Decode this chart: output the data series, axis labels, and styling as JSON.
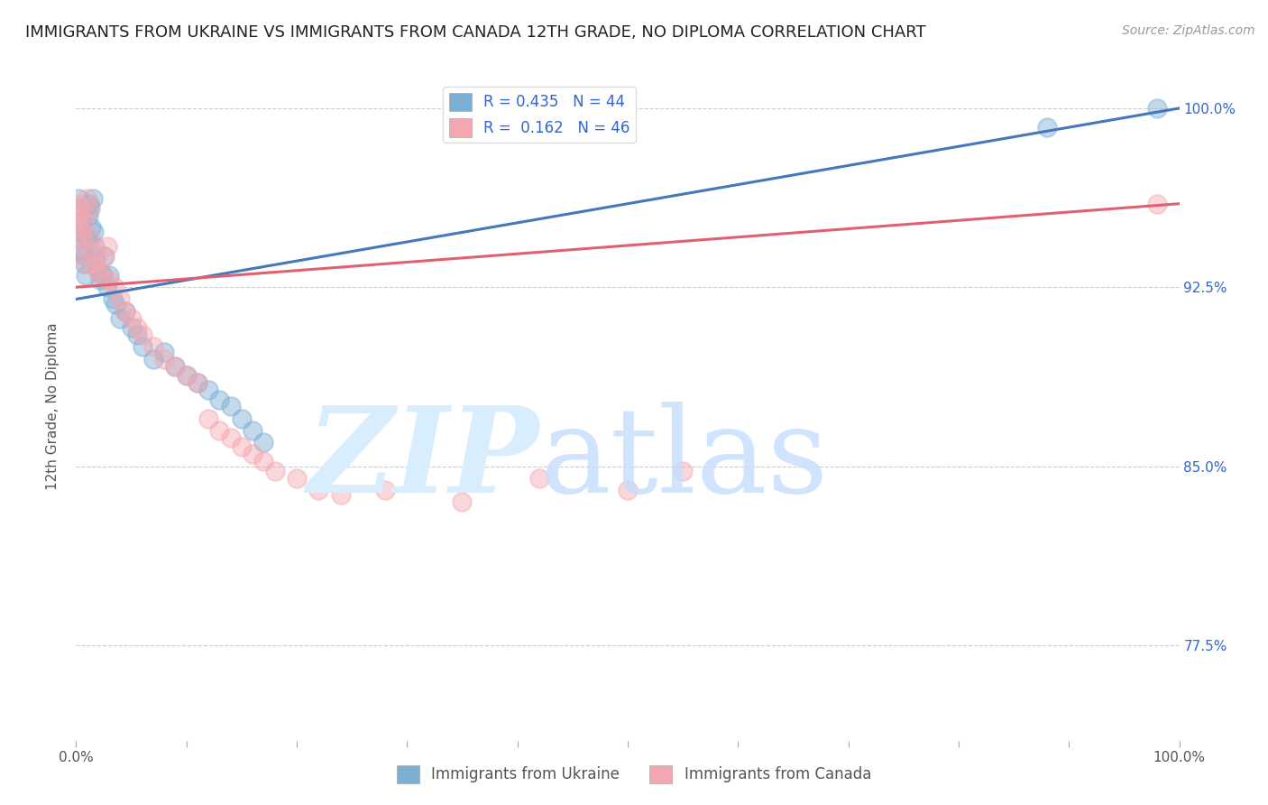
{
  "title": "IMMIGRANTS FROM UKRAINE VS IMMIGRANTS FROM CANADA 12TH GRADE, NO DIPLOMA CORRELATION CHART",
  "source": "Source: ZipAtlas.com",
  "ylabel": "12th Grade, No Diploma",
  "ukraine_R": 0.435,
  "ukraine_N": 44,
  "canada_R": 0.162,
  "canada_N": 46,
  "xlim": [
    0.0,
    1.0
  ],
  "ylim": [
    0.735,
    1.015
  ],
  "yticks": [
    0.775,
    0.85,
    0.925,
    1.0
  ],
  "ytick_labels": [
    "77.5%",
    "85.0%",
    "92.5%",
    "100.0%"
  ],
  "ukraine_color": "#7BAFD4",
  "canada_color": "#F4A7B0",
  "ukraine_line_color": "#4477BB",
  "canada_line_color": "#E06070",
  "background_color": "#FFFFFF",
  "ukraine_x": [
    0.001,
    0.002,
    0.003,
    0.004,
    0.005,
    0.006,
    0.007,
    0.008,
    0.009,
    0.01,
    0.011,
    0.012,
    0.013,
    0.014,
    0.015,
    0.016,
    0.017,
    0.018,
    0.02,
    0.022,
    0.024,
    0.026,
    0.028,
    0.03,
    0.033,
    0.036,
    0.04,
    0.045,
    0.05,
    0.055,
    0.06,
    0.07,
    0.08,
    0.09,
    0.1,
    0.11,
    0.12,
    0.13,
    0.14,
    0.15,
    0.16,
    0.17,
    0.88,
    0.98
  ],
  "ukraine_y": [
    0.958,
    0.962,
    0.948,
    0.945,
    0.952,
    0.94,
    0.935,
    0.938,
    0.93,
    0.945,
    0.955,
    0.96,
    0.958,
    0.95,
    0.962,
    0.948,
    0.942,
    0.938,
    0.932,
    0.928,
    0.93,
    0.938,
    0.925,
    0.93,
    0.92,
    0.918,
    0.912,
    0.915,
    0.908,
    0.905,
    0.9,
    0.895,
    0.898,
    0.892,
    0.888,
    0.885,
    0.882,
    0.878,
    0.875,
    0.87,
    0.865,
    0.86,
    0.992,
    1.0
  ],
  "canada_x": [
    0.001,
    0.002,
    0.003,
    0.004,
    0.005,
    0.006,
    0.007,
    0.008,
    0.009,
    0.01,
    0.012,
    0.014,
    0.016,
    0.018,
    0.02,
    0.022,
    0.025,
    0.028,
    0.03,
    0.035,
    0.04,
    0.045,
    0.05,
    0.055,
    0.06,
    0.07,
    0.08,
    0.09,
    0.1,
    0.11,
    0.12,
    0.13,
    0.14,
    0.15,
    0.16,
    0.17,
    0.18,
    0.2,
    0.22,
    0.24,
    0.28,
    0.35,
    0.42,
    0.5,
    0.55,
    0.98
  ],
  "canada_y": [
    0.96,
    0.955,
    0.952,
    0.948,
    0.958,
    0.945,
    0.94,
    0.952,
    0.935,
    0.962,
    0.958,
    0.945,
    0.94,
    0.935,
    0.932,
    0.93,
    0.938,
    0.942,
    0.928,
    0.925,
    0.92,
    0.915,
    0.912,
    0.908,
    0.905,
    0.9,
    0.895,
    0.892,
    0.888,
    0.885,
    0.87,
    0.865,
    0.862,
    0.858,
    0.855,
    0.852,
    0.848,
    0.845,
    0.84,
    0.838,
    0.84,
    0.835,
    0.845,
    0.84,
    0.848,
    0.96
  ],
  "legend_ukraine_label": "Immigrants from Ukraine",
  "legend_canada_label": "Immigrants from Canada",
  "title_fontsize": 13,
  "axis_label_fontsize": 11,
  "tick_fontsize": 11,
  "legend_fontsize": 12,
  "source_fontsize": 10,
  "ukraine_trend_x0": 0.0,
  "ukraine_trend_y0": 0.92,
  "ukraine_trend_x1": 1.0,
  "ukraine_trend_y1": 1.0,
  "canada_trend_x0": 0.0,
  "canada_trend_y0": 0.925,
  "canada_trend_x1": 1.0,
  "canada_trend_y1": 0.96
}
